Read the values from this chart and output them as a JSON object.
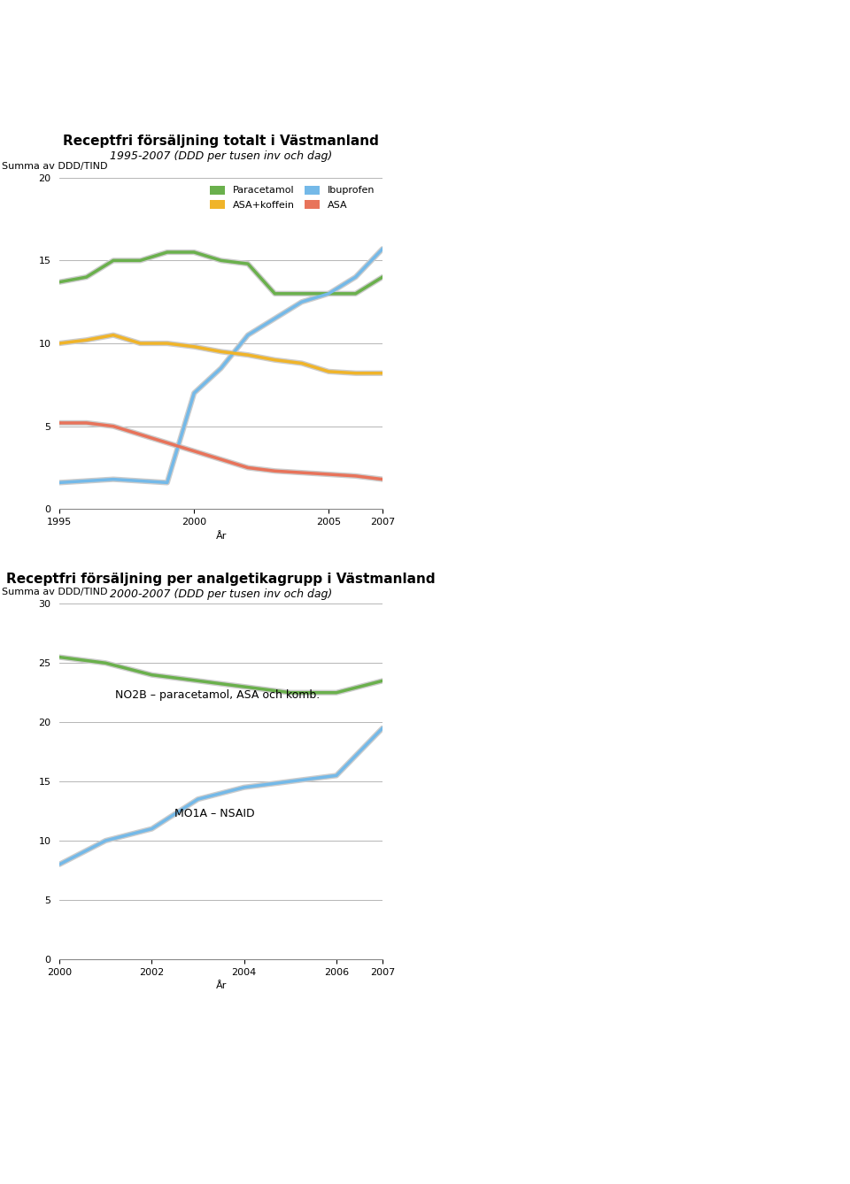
{
  "chart1": {
    "title": "Receptfri försäljning totalt i Västmanland",
    "subtitle": "1995-2007 (DDD per tusen inv och dag)",
    "ylabel": "Summa av DDD/TIND",
    "xlabel": "År",
    "ylim": [
      0,
      20
    ],
    "yticks": [
      0,
      5,
      10,
      15,
      20
    ],
    "years": [
      1995,
      1996,
      1997,
      1998,
      1999,
      2000,
      2001,
      2002,
      2003,
      2004,
      2005,
      2006,
      2007
    ],
    "xticks": [
      1995,
      2000,
      2005,
      2007
    ],
    "paracetamol": [
      13.7,
      14.0,
      15.0,
      15.0,
      15.5,
      15.5,
      15.0,
      14.8,
      13.0,
      13.0,
      13.0,
      13.0,
      14.0
    ],
    "ibuprofen": [
      1.6,
      1.7,
      1.8,
      1.7,
      1.6,
      7.0,
      8.5,
      10.5,
      11.5,
      12.5,
      13.0,
      14.0,
      15.7
    ],
    "asa_koffein": [
      10.0,
      10.2,
      10.5,
      10.0,
      10.0,
      9.8,
      9.5,
      9.3,
      9.0,
      8.8,
      8.3,
      8.2,
      8.2
    ],
    "asa": [
      5.2,
      5.2,
      5.0,
      4.5,
      4.0,
      3.5,
      3.0,
      2.5,
      2.3,
      2.2,
      2.1,
      2.0,
      1.8
    ],
    "paracetamol_color": "#6ab04c",
    "ibuprofen_color": "#74b9e8",
    "asa_koffein_color": "#f0b429",
    "asa_color": "#e8735a"
  },
  "chart2": {
    "title": "Receptfri försäljning per analgetikagrupp i Västmanland",
    "subtitle": "2000-2007 (DDD per tusen inv och dag)",
    "ylabel": "Summa av DDD/TIND",
    "xlabel": "År",
    "ylim": [
      0,
      30
    ],
    "yticks": [
      0,
      5,
      10,
      15,
      20,
      25,
      30
    ],
    "years": [
      2000,
      2001,
      2002,
      2003,
      2004,
      2005,
      2006,
      2007
    ],
    "xticks": [
      2000,
      2002,
      2004,
      2006,
      2007
    ],
    "n02b": [
      25.5,
      25.0,
      24.0,
      23.5,
      23.0,
      22.5,
      22.5,
      23.5
    ],
    "m01a": [
      8.0,
      10.0,
      11.0,
      13.5,
      14.5,
      15.0,
      15.5,
      19.5
    ],
    "n02b_color": "#6ab04c",
    "m01a_color": "#74b9e8",
    "n02b_label": "NO2B – paracetamol, ASA och komb.",
    "m01a_label": "MO1A – NSAID"
  },
  "bg_color": "#ffffff",
  "title_fontsize": 11,
  "subtitle_fontsize": 9,
  "axis_label_fontsize": 8,
  "tick_fontsize": 8
}
